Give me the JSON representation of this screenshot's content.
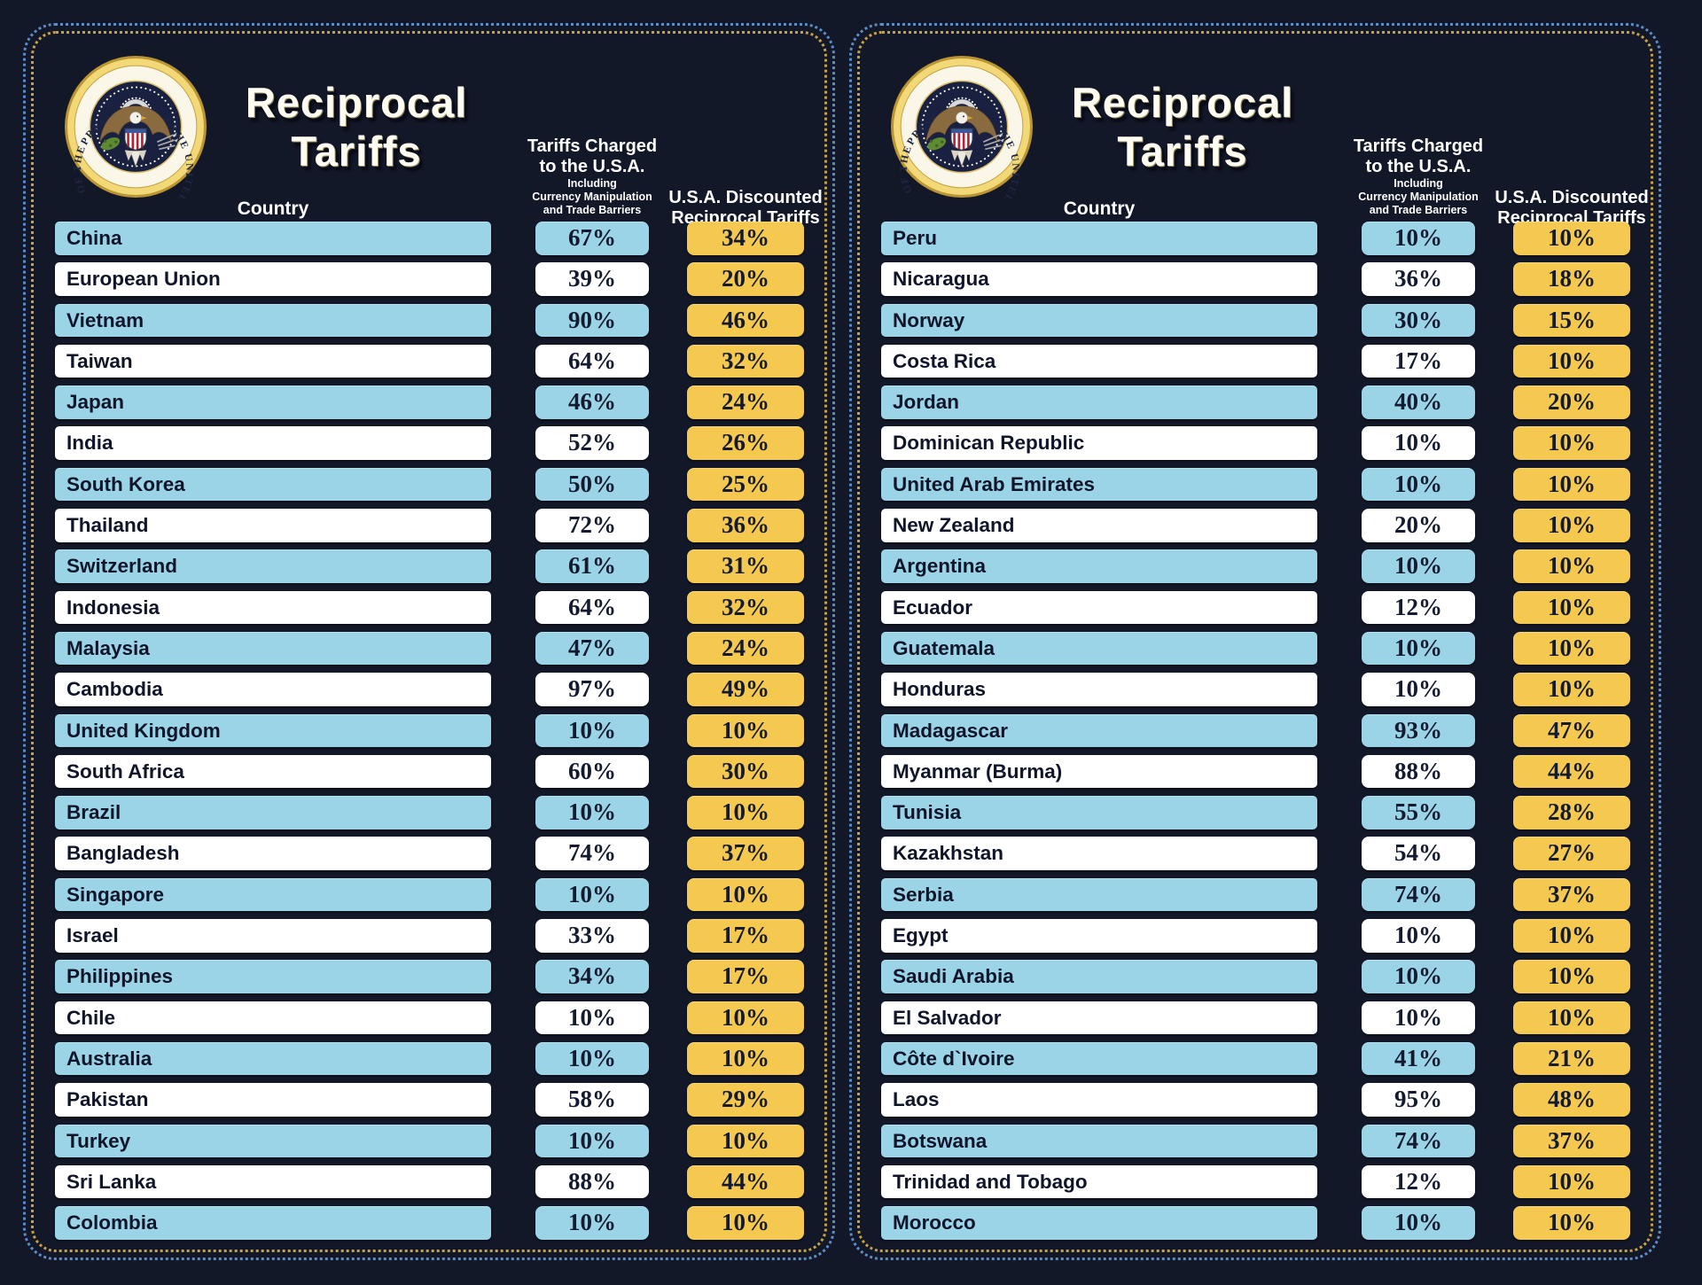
{
  "colors": {
    "background": "#131829",
    "bar_blue": "#9bd4e7",
    "bar_white": "#ffffff",
    "discount_yellow": "#f5c94f",
    "border_dots_blue": "#5b8ec7",
    "border_dots_gold": "#c8a242",
    "text_dark_navy": "#10152a",
    "text_white": "#ffffff"
  },
  "header": {
    "title": "Reciprocal Tariffs",
    "country_col": "Country",
    "charged_line1": "Tariffs Charged",
    "charged_line2": "to the U.S.A.",
    "charged_sub1": "Including",
    "charged_sub2": "Currency Manipulation",
    "charged_sub3": "and Trade Barriers",
    "discounted_line1": "U.S.A. Discounted",
    "discounted_line2": "Reciprocal Tariffs",
    "seal_text": "PRESIDENT OF THE UNITED STATES • SEAL • OF THE •"
  },
  "chart_data": [
    {
      "type": "table",
      "title": "Reciprocal Tariffs",
      "columns": [
        "Country",
        "Tariffs Charged to the U.S.A. Including Currency Manipulation and Trade Barriers",
        "U.S.A. Discounted Reciprocal Tariffs"
      ],
      "rows": [
        [
          "China",
          "67%",
          "34%"
        ],
        [
          "European Union",
          "39%",
          "20%"
        ],
        [
          "Vietnam",
          "90%",
          "46%"
        ],
        [
          "Taiwan",
          "64%",
          "32%"
        ],
        [
          "Japan",
          "46%",
          "24%"
        ],
        [
          "India",
          "52%",
          "26%"
        ],
        [
          "South Korea",
          "50%",
          "25%"
        ],
        [
          "Thailand",
          "72%",
          "36%"
        ],
        [
          "Switzerland",
          "61%",
          "31%"
        ],
        [
          "Indonesia",
          "64%",
          "32%"
        ],
        [
          "Malaysia",
          "47%",
          "24%"
        ],
        [
          "Cambodia",
          "97%",
          "49%"
        ],
        [
          "United Kingdom",
          "10%",
          "10%"
        ],
        [
          "South Africa",
          "60%",
          "30%"
        ],
        [
          "Brazil",
          "10%",
          "10%"
        ],
        [
          "Bangladesh",
          "74%",
          "37%"
        ],
        [
          "Singapore",
          "10%",
          "10%"
        ],
        [
          "Israel",
          "33%",
          "17%"
        ],
        [
          "Philippines",
          "34%",
          "17%"
        ],
        [
          "Chile",
          "10%",
          "10%"
        ],
        [
          "Australia",
          "10%",
          "10%"
        ],
        [
          "Pakistan",
          "58%",
          "29%"
        ],
        [
          "Turkey",
          "10%",
          "10%"
        ],
        [
          "Sri Lanka",
          "88%",
          "44%"
        ],
        [
          "Colombia",
          "10%",
          "10%"
        ]
      ]
    },
    {
      "type": "table",
      "title": "Reciprocal Tariffs",
      "columns": [
        "Country",
        "Tariffs Charged to the U.S.A. Including Currency Manipulation and Trade Barriers",
        "U.S.A. Discounted Reciprocal Tariffs"
      ],
      "rows": [
        [
          "Peru",
          "10%",
          "10%"
        ],
        [
          "Nicaragua",
          "36%",
          "18%"
        ],
        [
          "Norway",
          "30%",
          "15%"
        ],
        [
          "Costa Rica",
          "17%",
          "10%"
        ],
        [
          "Jordan",
          "40%",
          "20%"
        ],
        [
          "Dominican Republic",
          "10%",
          "10%"
        ],
        [
          "United Arab Emirates",
          "10%",
          "10%"
        ],
        [
          "New Zealand",
          "20%",
          "10%"
        ],
        [
          "Argentina",
          "10%",
          "10%"
        ],
        [
          "Ecuador",
          "12%",
          "10%"
        ],
        [
          "Guatemala",
          "10%",
          "10%"
        ],
        [
          "Honduras",
          "10%",
          "10%"
        ],
        [
          "Madagascar",
          "93%",
          "47%"
        ],
        [
          "Myanmar (Burma)",
          "88%",
          "44%"
        ],
        [
          "Tunisia",
          "55%",
          "28%"
        ],
        [
          "Kazakhstan",
          "54%",
          "27%"
        ],
        [
          "Serbia",
          "74%",
          "37%"
        ],
        [
          "Egypt",
          "10%",
          "10%"
        ],
        [
          "Saudi Arabia",
          "10%",
          "10%"
        ],
        [
          "El Salvador",
          "10%",
          "10%"
        ],
        [
          "Côte d`Ivoire",
          "41%",
          "21%"
        ],
        [
          "Laos",
          "95%",
          "48%"
        ],
        [
          "Botswana",
          "74%",
          "37%"
        ],
        [
          "Trinidad and Tobago",
          "12%",
          "10%"
        ],
        [
          "Morocco",
          "10%",
          "10%"
        ]
      ]
    }
  ]
}
